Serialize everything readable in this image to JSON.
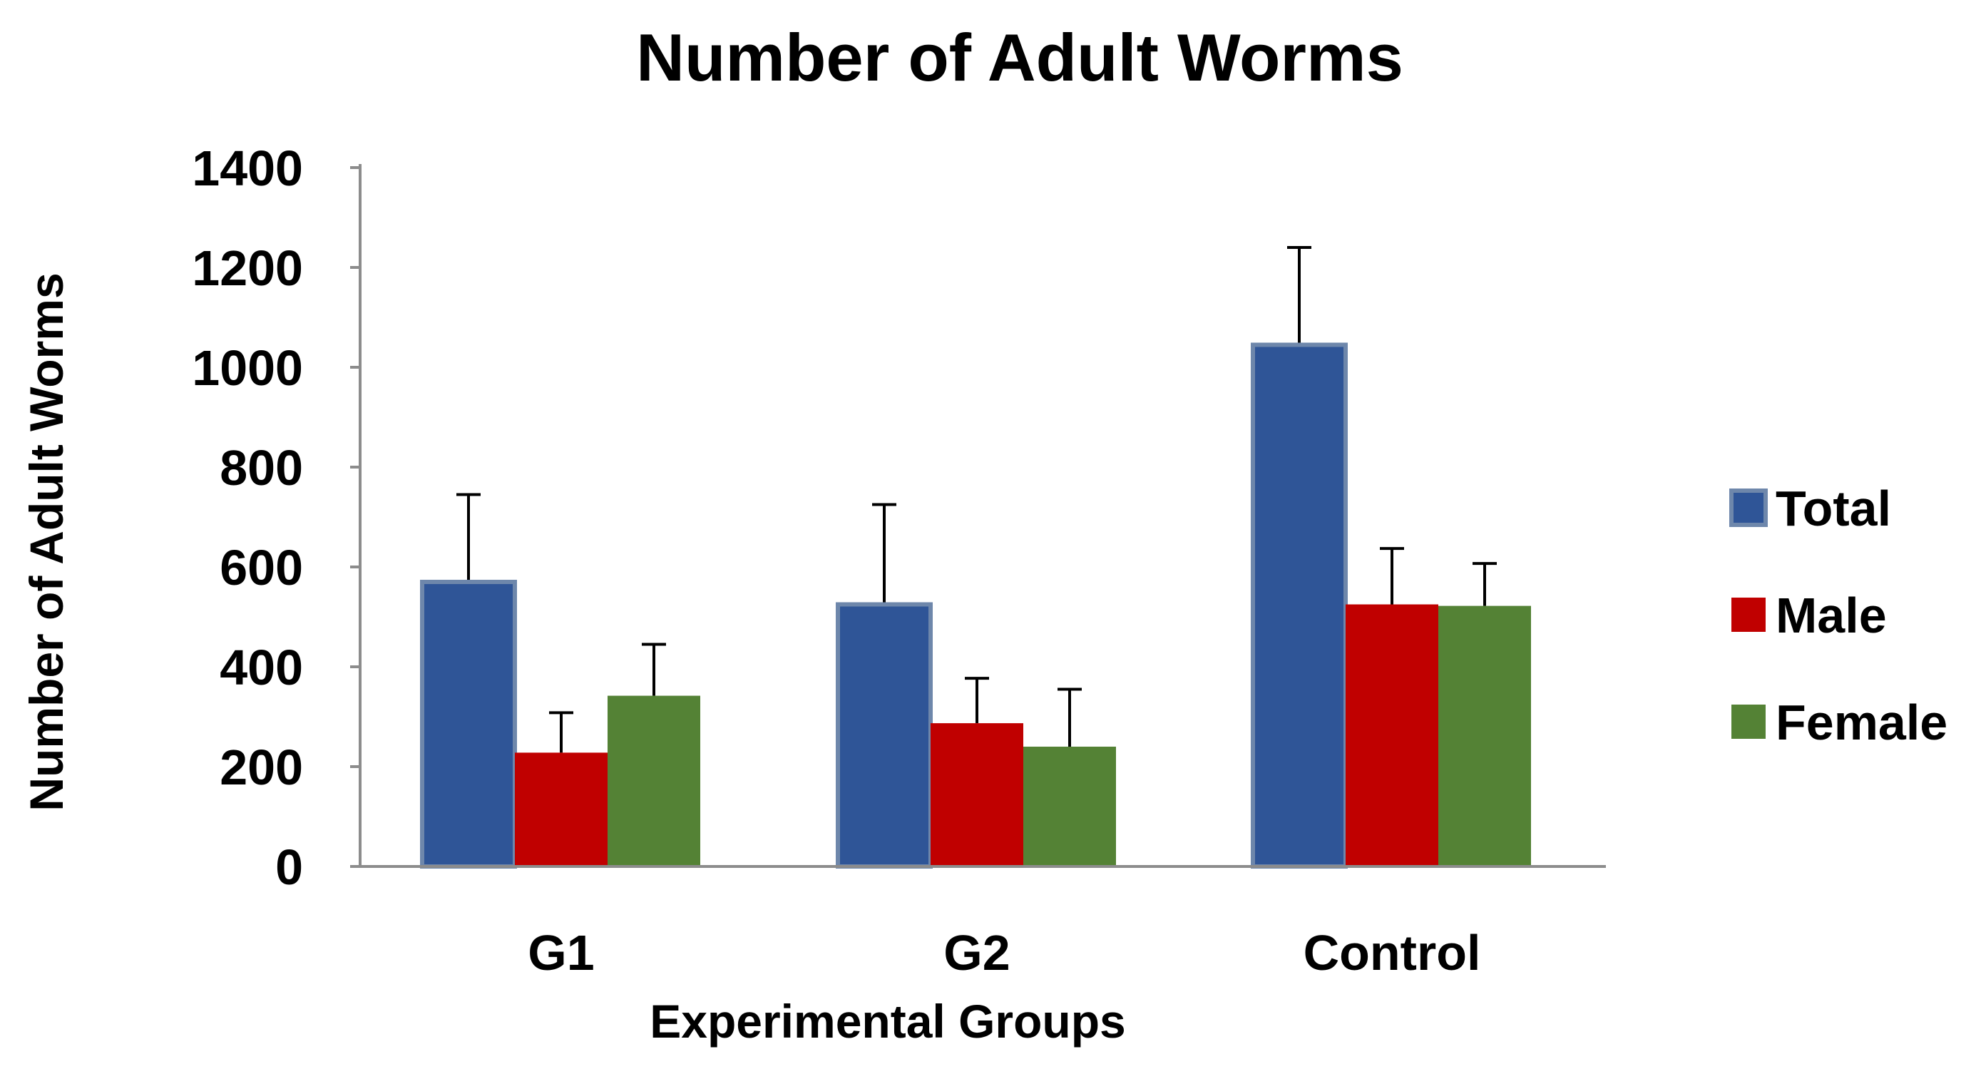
{
  "chart_data": {
    "type": "bar",
    "title": "Number of Adult Worms",
    "xlabel": "Experimental Groups",
    "ylabel": "Number of Adult Worms",
    "ylim": [
      0,
      1400
    ],
    "yticks": [
      0,
      200,
      400,
      600,
      800,
      1000,
      1200,
      1400
    ],
    "grid": false,
    "legend_position": "right",
    "categories": [
      "G1",
      "G2",
      "Control"
    ],
    "series": [
      {
        "name": "Total",
        "color": "#2F5597",
        "border": "#6E87AB",
        "values": [
          570,
          525,
          1045
        ],
        "errors": [
          175,
          200,
          195
        ]
      },
      {
        "name": "Male",
        "color": "#C00000",
        "border": "#C00000",
        "values": [
          228,
          287,
          525
        ],
        "errors": [
          80,
          90,
          112
        ]
      },
      {
        "name": "Female",
        "color": "#548235",
        "border": "#548235",
        "values": [
          342,
          240,
          522
        ],
        "errors": [
          103,
          115,
          85
        ]
      }
    ]
  }
}
